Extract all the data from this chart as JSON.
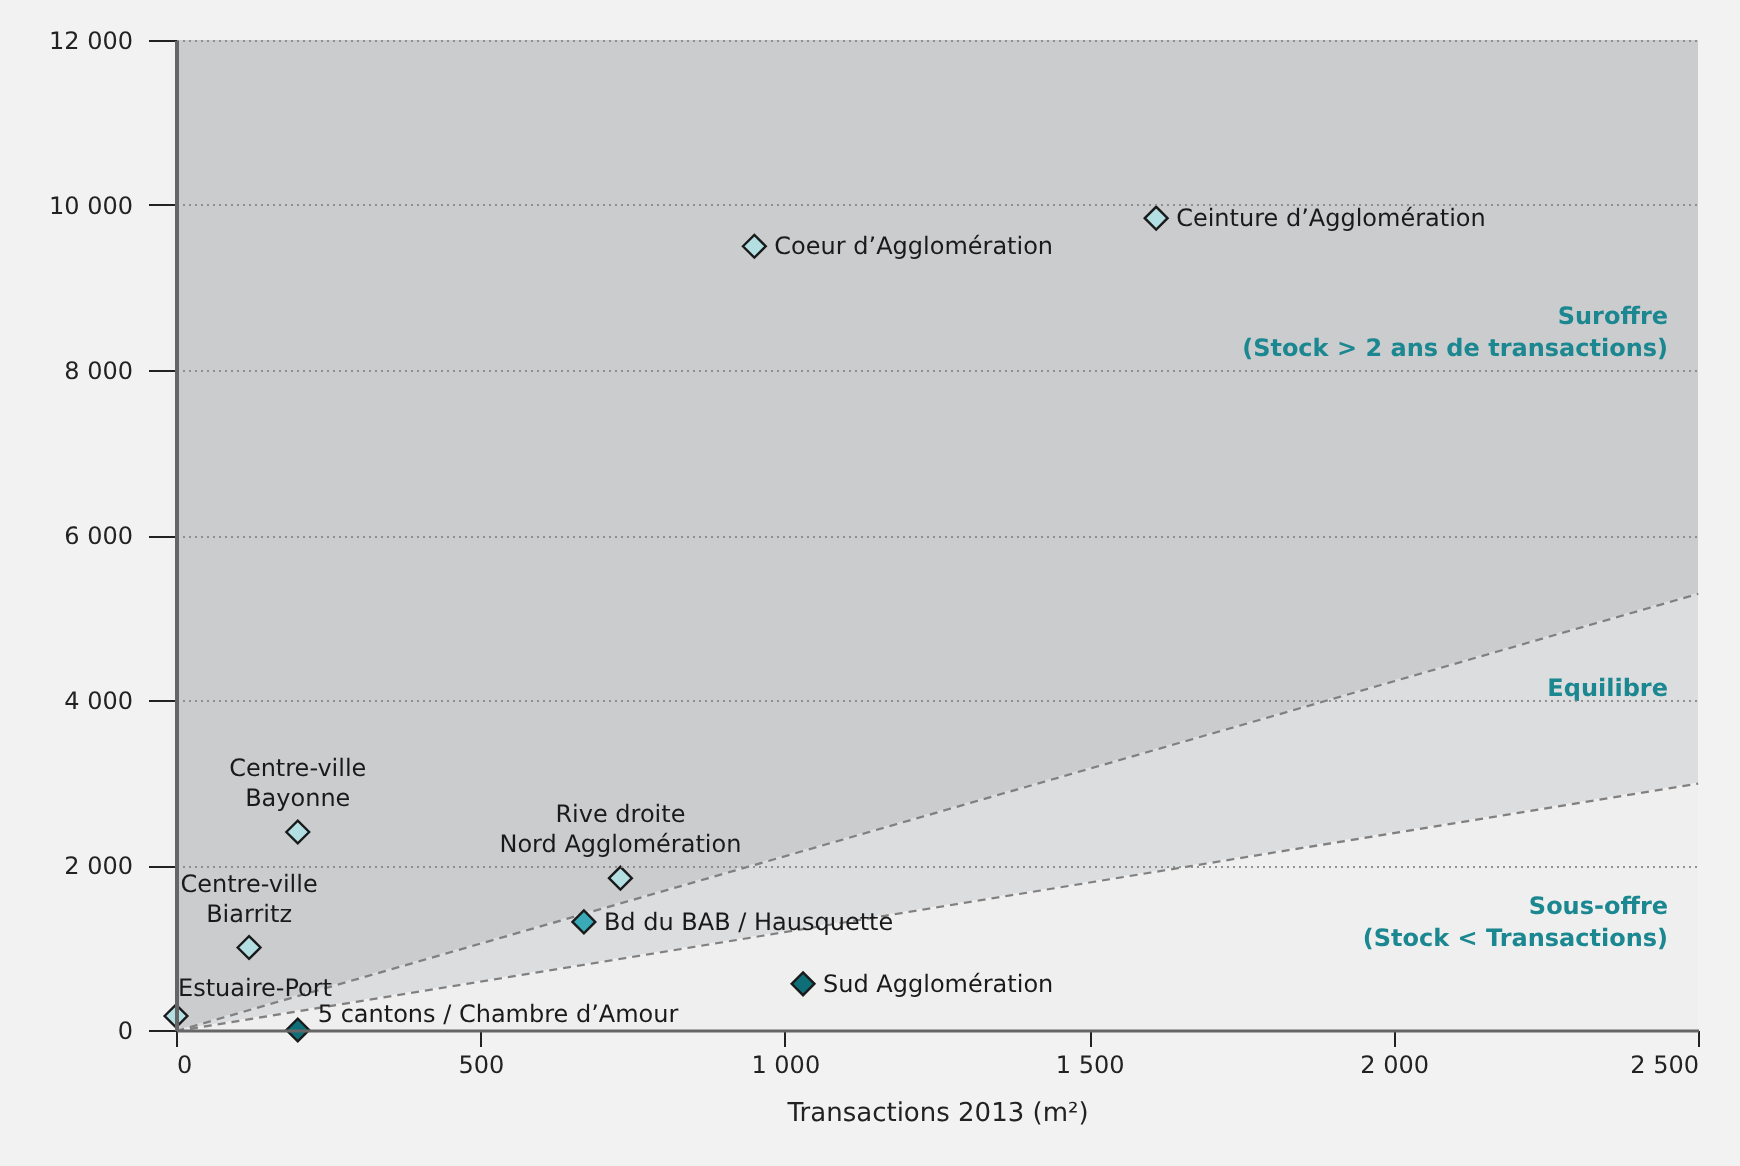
{
  "chart_data": {
    "type": "scatter",
    "xlabel": "Transactions 2013 (m²)",
    "xlim": [
      0,
      2500
    ],
    "ylim": [
      0,
      12000
    ],
    "xticks": [
      0,
      500,
      {
        "value": 1000,
        "label": "1 000"
      },
      {
        "value": 1500,
        "label": "1 500"
      },
      {
        "value": 2000,
        "label": "2 000"
      },
      {
        "value": 2500,
        "label": "2 500"
      }
    ],
    "yticks": [
      0,
      {
        "value": 2000,
        "label": "2 000"
      },
      {
        "value": 4000,
        "label": "4 000"
      },
      {
        "value": 6000,
        "label": "6 000"
      },
      {
        "value": 8000,
        "label": "8 000"
      },
      {
        "value": 10000,
        "label": "10 000"
      },
      {
        "value": 12000,
        "label": "12 000"
      }
    ],
    "grid": "y",
    "stacked": true,
    "series": [
      {
        "type": "area",
        "color": "#efefef",
        "x": [
          0,
          2500
        ],
        "values": [
          0,
          3000
        ],
        "line_style": "dashed"
      },
      {
        "type": "area",
        "color": "#dcdddf",
        "x": [
          0,
          2500
        ],
        "values": [
          0,
          2300
        ],
        "line_style": "dashed"
      },
      {
        "type": "area",
        "color": "#cbcccd",
        "x": [
          0,
          2500
        ],
        "values": [
          12000,
          6700
        ]
      },
      {
        "marker": "diamond",
        "x": [
          0,
          200,
          120,
          200,
          670,
          730,
          1030,
          950,
          1610
        ],
        "values": [
          170,
          0,
          1000,
          2400,
          1310,
          1840,
          560,
          9500,
          9840
        ],
        "colors": [
          "#b3dfe3",
          "#0f6f78",
          "#b3dfe3",
          "#b3dfe3",
          "#3aaab8",
          "#b3dfe3",
          "#0f6f78",
          "#b3dfe3",
          "#b3dfe3"
        ]
      }
    ],
    "annotations": [
      {
        "text": "Estuaire-Port",
        "x": 0,
        "y": 170
      },
      {
        "text": "5 cantons / Chambre d’Amour",
        "x": 200,
        "y": 0
      },
      {
        "text": "Centre-ville\nBiarritz",
        "x": 120,
        "y": 1000
      },
      {
        "text": "Centre-ville\nBayonne",
        "x": 200,
        "y": 2400
      },
      {
        "text": "Bd du BAB / Hausquette",
        "x": 670,
        "y": 1310
      },
      {
        "text": "Rive droite\nNord Agglomération",
        "x": 730,
        "y": 1840
      },
      {
        "text": "Sud Agglomération",
        "x": 1030,
        "y": 560
      },
      {
        "text": "Coeur d’Agglomération",
        "x": 950,
        "y": 9500
      },
      {
        "text": "Ceinture d’Agglomération",
        "x": 1610,
        "y": 9840
      },
      "Suroffre\n(Stock > 2 ans de transactions)",
      "Equilibre",
      "Sous-offre\n(Stock < Transactions)"
    ]
  }
}
